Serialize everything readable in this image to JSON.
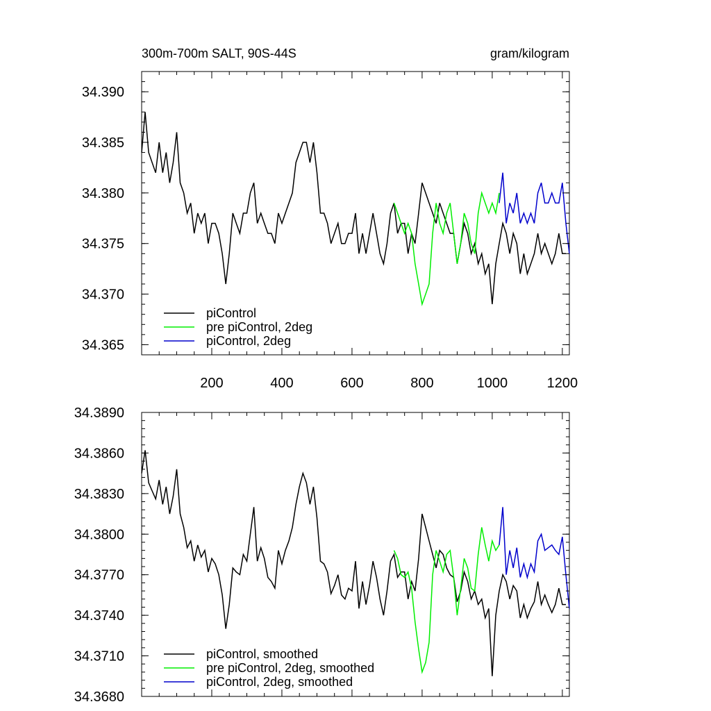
{
  "chart_data": [
    {
      "type": "line",
      "title": "300m-700m SALT, 90S-44S",
      "units_label": "gram/kilogram",
      "xlim": [
        0,
        1220
      ],
      "ylim": [
        34.364,
        34.392
      ],
      "x_ticks": [
        200,
        400,
        600,
        800,
        1000,
        1200
      ],
      "y_ticks": [
        34.39,
        34.385,
        34.38,
        34.375,
        34.37,
        34.365
      ],
      "x_tick_labels": [
        "200",
        "400",
        "600",
        "800",
        "1000",
        "1200"
      ],
      "y_tick_labels": [
        "34.390",
        "34.385",
        "34.380",
        "34.375",
        "34.370",
        "34.365"
      ],
      "legend_position": "bottom-left",
      "series": [
        {
          "name": "piControl",
          "color": "#000000",
          "x": [
            0,
            10,
            20,
            30,
            40,
            50,
            60,
            70,
            80,
            90,
            100,
            110,
            120,
            130,
            140,
            150,
            160,
            170,
            180,
            190,
            200,
            210,
            220,
            230,
            240,
            250,
            260,
            270,
            280,
            290,
            300,
            310,
            320,
            330,
            340,
            350,
            360,
            370,
            380,
            390,
            400,
            410,
            420,
            430,
            440,
            450,
            460,
            470,
            480,
            490,
            500,
            510,
            520,
            530,
            540,
            550,
            560,
            570,
            580,
            590,
            600,
            610,
            620,
            630,
            640,
            650,
            660,
            670,
            680,
            690,
            700,
            710,
            720,
            730,
            740,
            750,
            760,
            770,
            780,
            790,
            800,
            810,
            820,
            830,
            840,
            850,
            860,
            870,
            880,
            890,
            900,
            910,
            920,
            930,
            940,
            950,
            960,
            970,
            980,
            990,
            1000,
            1010,
            1020,
            1030,
            1040,
            1050,
            1060,
            1070,
            1080,
            1090,
            1100,
            1110,
            1120,
            1130,
            1140,
            1150,
            1160,
            1170,
            1180,
            1190,
            1200,
            1210
          ],
          "values": [
            34.384,
            34.388,
            34.384,
            34.383,
            34.382,
            34.385,
            34.382,
            34.384,
            34.381,
            34.383,
            34.386,
            34.381,
            34.38,
            34.378,
            34.379,
            34.376,
            34.378,
            34.377,
            34.378,
            34.375,
            34.377,
            34.377,
            34.376,
            34.374,
            34.371,
            34.374,
            34.378,
            34.377,
            34.376,
            34.378,
            34.378,
            34.38,
            34.381,
            34.377,
            34.378,
            34.377,
            34.376,
            34.376,
            34.375,
            34.378,
            34.377,
            34.378,
            34.379,
            34.38,
            34.383,
            34.384,
            34.385,
            34.385,
            34.383,
            34.385,
            34.382,
            34.378,
            34.378,
            34.377,
            34.375,
            34.376,
            34.377,
            34.375,
            34.375,
            34.376,
            34.376,
            34.378,
            34.374,
            34.376,
            34.374,
            34.376,
            34.378,
            34.376,
            34.374,
            34.373,
            34.375,
            34.378,
            34.379,
            34.376,
            34.377,
            34.377,
            34.374,
            34.376,
            34.375,
            34.378,
            34.381,
            34.38,
            34.379,
            34.378,
            34.377,
            34.379,
            34.378,
            34.377,
            34.376,
            34.376,
            34.373,
            34.375,
            34.377,
            34.376,
            34.374,
            34.375,
            34.373,
            34.374,
            34.372,
            34.373,
            34.369,
            34.373,
            34.375,
            34.377,
            34.376,
            34.374,
            34.376,
            34.375,
            34.372,
            34.374,
            34.372,
            34.373,
            34.374,
            34.376,
            34.374,
            34.375,
            34.374,
            34.373,
            34.374,
            34.376,
            34.374,
            34.374
          ]
        },
        {
          "name": "pre piControl, 2deg",
          "color": "#00ee00",
          "x": [
            720,
            730,
            740,
            750,
            760,
            770,
            780,
            790,
            800,
            810,
            820,
            830,
            840,
            850,
            860,
            870,
            880,
            890,
            900,
            910,
            920,
            930,
            940,
            950,
            960,
            970,
            980,
            990,
            1000,
            1010,
            1020
          ],
          "values": [
            34.379,
            34.378,
            34.377,
            34.376,
            34.377,
            34.376,
            34.373,
            34.371,
            34.369,
            34.37,
            34.371,
            34.376,
            34.379,
            34.377,
            34.376,
            34.378,
            34.379,
            34.376,
            34.373,
            34.375,
            34.378,
            34.377,
            34.375,
            34.374,
            34.378,
            34.38,
            34.379,
            34.378,
            34.379,
            34.378,
            34.38
          ]
        },
        {
          "name": "piControl, 2deg",
          "color": "#0000cc",
          "x": [
            1020,
            1030,
            1040,
            1050,
            1060,
            1070,
            1080,
            1090,
            1100,
            1110,
            1120,
            1130,
            1140,
            1150,
            1160,
            1170,
            1180,
            1190,
            1200,
            1210,
            1220
          ],
          "values": [
            34.379,
            34.382,
            34.377,
            34.379,
            34.378,
            34.38,
            34.377,
            34.378,
            34.377,
            34.378,
            34.377,
            34.38,
            34.381,
            34.379,
            34.379,
            34.38,
            34.379,
            34.379,
            34.381,
            34.377,
            34.374
          ]
        }
      ]
    },
    {
      "type": "line",
      "xlim": [
        0,
        1220
      ],
      "ylim": [
        34.368,
        34.389
      ],
      "x_ticks": [
        200,
        400,
        600,
        800,
        1000,
        1200
      ],
      "y_ticks": [
        34.389,
        34.386,
        34.383,
        34.38,
        34.377,
        34.374,
        34.371,
        34.368
      ],
      "y_tick_labels": [
        "34.3890",
        "34.3860",
        "34.3830",
        "34.3800",
        "34.3770",
        "34.3740",
        "34.3710",
        "34.3680"
      ],
      "legend_position": "bottom-left",
      "series": [
        {
          "name": "piControl, smoothed",
          "color": "#000000",
          "x": [
            0,
            10,
            20,
            30,
            40,
            50,
            60,
            70,
            80,
            90,
            100,
            110,
            120,
            130,
            140,
            150,
            160,
            170,
            180,
            190,
            200,
            210,
            220,
            230,
            240,
            250,
            260,
            270,
            280,
            290,
            300,
            310,
            320,
            330,
            340,
            350,
            360,
            370,
            380,
            390,
            400,
            410,
            420,
            430,
            440,
            450,
            460,
            470,
            480,
            490,
            500,
            510,
            520,
            530,
            540,
            550,
            560,
            570,
            580,
            590,
            600,
            610,
            620,
            630,
            640,
            650,
            660,
            670,
            680,
            690,
            700,
            710,
            720,
            730,
            740,
            750,
            760,
            770,
            780,
            790,
            800,
            810,
            820,
            830,
            840,
            850,
            860,
            870,
            880,
            890,
            900,
            910,
            920,
            930,
            940,
            950,
            960,
            970,
            980,
            990,
            1000,
            1010,
            1020,
            1030,
            1040,
            1050,
            1060,
            1070,
            1080,
            1090,
            1100,
            1110,
            1120,
            1130,
            1140,
            1150,
            1160,
            1170,
            1180,
            1190,
            1200,
            1210
          ],
          "values": [
            34.3845,
            34.3862,
            34.3838,
            34.3832,
            34.3826,
            34.384,
            34.3822,
            34.3835,
            34.3815,
            34.3828,
            34.3848,
            34.3815,
            34.3805,
            34.379,
            34.3795,
            34.378,
            34.3792,
            34.3783,
            34.3788,
            34.3772,
            34.3782,
            34.3778,
            34.377,
            34.3755,
            34.373,
            34.3748,
            34.3775,
            34.3772,
            34.377,
            34.3785,
            34.378,
            34.38,
            34.382,
            34.378,
            34.379,
            34.3782,
            34.3768,
            34.3765,
            34.376,
            34.3788,
            34.3778,
            34.3788,
            34.3795,
            34.3805,
            34.3822,
            34.3835,
            34.3845,
            34.3838,
            34.3822,
            34.3835,
            34.3812,
            34.378,
            34.3778,
            34.3772,
            34.3756,
            34.3762,
            34.377,
            34.3755,
            34.3752,
            34.376,
            34.3758,
            34.378,
            34.3745,
            34.3765,
            34.3748,
            34.3762,
            34.378,
            34.3768,
            34.3752,
            34.374,
            34.3758,
            34.378,
            34.3785,
            34.3768,
            34.3772,
            34.3772,
            34.3752,
            34.3765,
            34.3758,
            34.3782,
            34.3815,
            34.3805,
            34.3795,
            34.3785,
            34.3775,
            34.3788,
            34.3785,
            34.3775,
            34.377,
            34.3768,
            34.375,
            34.3758,
            34.3772,
            34.3765,
            34.3752,
            34.3758,
            34.3748,
            34.3752,
            34.3738,
            34.3745,
            34.3695,
            34.374,
            34.3758,
            34.377,
            34.3765,
            34.3752,
            34.3762,
            34.3758,
            34.3738,
            34.3748,
            34.3738,
            34.3745,
            34.375,
            34.3765,
            34.3748,
            34.3755,
            34.3748,
            34.3742,
            34.3748,
            34.376,
            34.3748,
            34.3748
          ]
        },
        {
          "name": "pre piControl, 2deg, smoothed",
          "color": "#00ee00",
          "x": [
            720,
            730,
            740,
            750,
            760,
            770,
            780,
            790,
            800,
            810,
            820,
            830,
            840,
            850,
            860,
            870,
            880,
            890,
            900,
            910,
            920,
            930,
            940,
            950,
            960,
            970,
            980,
            990,
            1000,
            1010,
            1020
          ],
          "values": [
            34.3788,
            34.3782,
            34.377,
            34.3768,
            34.3772,
            34.376,
            34.3735,
            34.3715,
            34.3698,
            34.3705,
            34.372,
            34.377,
            34.3788,
            34.378,
            34.3772,
            34.3785,
            34.3788,
            34.3768,
            34.374,
            34.376,
            34.3782,
            34.3775,
            34.376,
            34.3758,
            34.3785,
            34.3805,
            34.3792,
            34.378,
            34.3795,
            34.3788,
            34.3792
          ]
        },
        {
          "name": "piControl, 2deg, smoothed",
          "color": "#0000cc",
          "x": [
            1020,
            1030,
            1040,
            1050,
            1060,
            1070,
            1080,
            1090,
            1100,
            1110,
            1120,
            1130,
            1140,
            1150,
            1160,
            1170,
            1180,
            1190,
            1200,
            1210,
            1220
          ],
          "values": [
            34.3792,
            34.382,
            34.377,
            34.3788,
            34.3775,
            34.379,
            34.3768,
            34.3778,
            34.3768,
            34.3778,
            34.3772,
            34.3795,
            34.38,
            34.3788,
            34.379,
            34.3792,
            34.3788,
            34.3785,
            34.3798,
            34.377,
            34.3745
          ]
        }
      ]
    }
  ]
}
